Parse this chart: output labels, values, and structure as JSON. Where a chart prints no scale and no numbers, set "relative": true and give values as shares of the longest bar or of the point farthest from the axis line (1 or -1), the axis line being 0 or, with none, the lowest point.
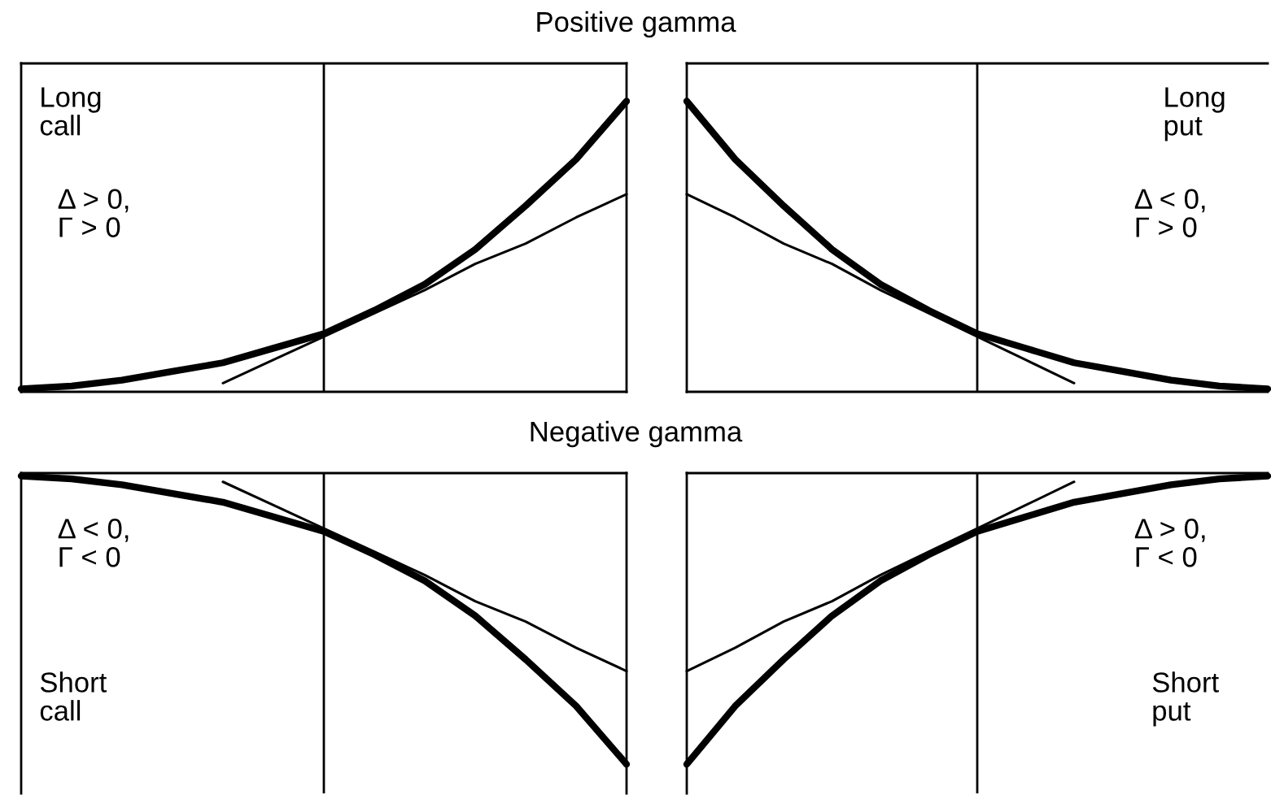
{
  "chart_data": [
    {
      "type": "line",
      "title": "Positive gamma",
      "relative": true,
      "grid": false,
      "legend": false,
      "categories": [
        null,
        null,
        null,
        null,
        null,
        null,
        null,
        null,
        null,
        null,
        null,
        null,
        null
      ],
      "series": [
        {
          "color": "#000000",
          "values": [
            0.01,
            0.02,
            0.04,
            0.07,
            0.1,
            0.15,
            0.2,
            0.28,
            0.37,
            0.49,
            0.64,
            0.8,
            1
          ]
        },
        {
          "color": "#000000",
          "values": [
            null,
            null,
            null,
            null,
            0.03,
            0.11,
            0.19,
            0.27,
            0.35,
            0.44,
            0.51,
            0.6,
            0.68
          ]
        }
      ],
      "annotations": [
        "Long\ncall",
        "Δ > 0,\nΓ > 0"
      ]
    },
    {
      "type": "line",
      "relative": true,
      "grid": false,
      "legend": false,
      "categories": [
        null,
        null,
        null,
        null,
        null,
        null,
        null,
        null,
        null,
        null,
        null,
        null,
        null
      ],
      "series": [
        {
          "color": "#000000",
          "values": [
            1,
            0.8,
            0.64,
            0.49,
            0.37,
            0.28,
            0.2,
            0.15,
            0.1,
            0.07,
            0.04,
            0.02,
            0.01
          ]
        },
        {
          "color": "#000000",
          "values": [
            0.68,
            0.6,
            0.51,
            0.44,
            0.35,
            0.27,
            0.19,
            0.11,
            0.03,
            null,
            null,
            null,
            null
          ]
        }
      ],
      "annotations": [
        "Long\nput",
        "Δ < 0,\nΓ > 0"
      ]
    },
    {
      "type": "line",
      "title": "Negative gamma",
      "relative": true,
      "grid": false,
      "legend": false,
      "categories": [
        null,
        null,
        null,
        null,
        null,
        null,
        null,
        null,
        null,
        null,
        null,
        null,
        null
      ],
      "series": [
        {
          "color": "#000000",
          "values": [
            -0.01,
            -0.02,
            -0.04,
            -0.07,
            -0.1,
            -0.15,
            -0.2,
            -0.28,
            -0.37,
            -0.49,
            -0.64,
            -0.8,
            -1
          ]
        },
        {
          "color": "#000000",
          "values": [
            null,
            null,
            null,
            null,
            -0.03,
            -0.11,
            -0.19,
            -0.27,
            -0.35,
            -0.44,
            -0.51,
            -0.6,
            -0.68
          ]
        }
      ],
      "annotations": [
        "Δ < 0,\nΓ < 0",
        "Short\ncall"
      ]
    },
    {
      "type": "line",
      "relative": true,
      "grid": false,
      "legend": false,
      "categories": [
        null,
        null,
        null,
        null,
        null,
        null,
        null,
        null,
        null,
        null,
        null,
        null,
        null
      ],
      "series": [
        {
          "color": "#000000",
          "values": [
            -1,
            -0.8,
            -0.64,
            -0.49,
            -0.37,
            -0.28,
            -0.2,
            -0.15,
            -0.1,
            -0.07,
            -0.04,
            -0.02,
            -0.01
          ]
        },
        {
          "color": "#000000",
          "values": [
            -0.68,
            -0.6,
            -0.51,
            -0.44,
            -0.35,
            -0.27,
            -0.19,
            -0.11,
            -0.03,
            null,
            null,
            null,
            null
          ]
        }
      ],
      "annotations": [
        "Δ > 0,\nΓ < 0",
        "Short\nput"
      ]
    }
  ]
}
